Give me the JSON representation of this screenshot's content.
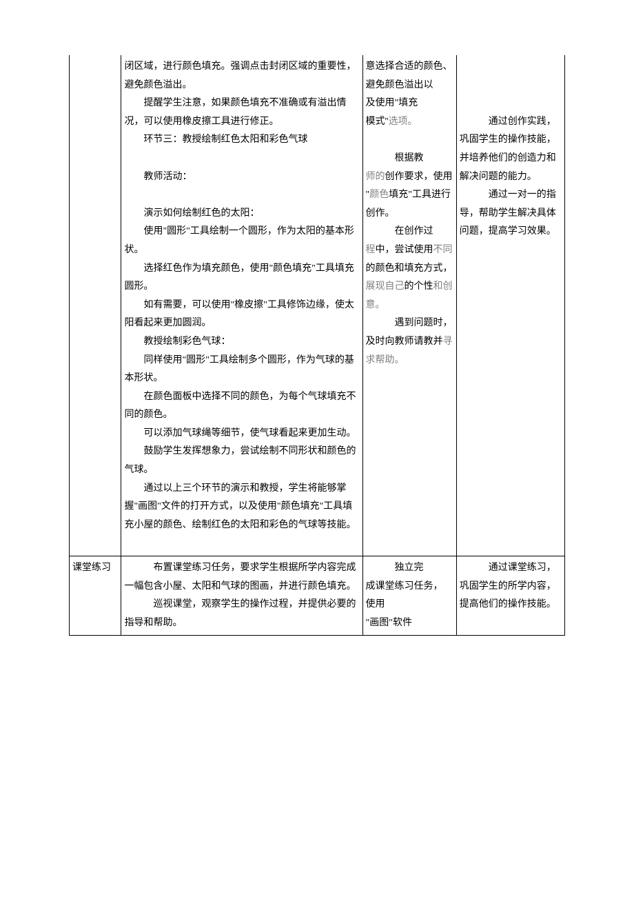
{
  "table": {
    "row1": {
      "col1": "",
      "col2_paragraphs": [
        "闭区域，进行颜色填充。强调点击封闭区域的重要性，避免颜色溢出。",
        "提醒学生注意，如果颜色填充不准确或有溢出情况，可以使用橡皮擦工具进行修正。",
        "环节三：教授绘制红色太阳和彩色气球",
        "",
        "教师活动：",
        "",
        "演示如何绘制红色的太阳：",
        "使用\"圆形\"工具绘制一个圆形，作为太阳的基本形状。",
        "选择红色作为填充颜色，使用\"颜色填充\"工具填充圆形。",
        "如有需要，可以使用\"橡皮擦\"工具修饰边缘，使太阳看起来更加圆润。",
        "教授绘制彩色气球：",
        "同样使用\"圆形\"工具绘制多个圆形，作为气球的基本形状。",
        "在颜色面板中选择不同的颜色，为每个气球填充不同的颜色。",
        "可以添加气球绳等细节，使气球看起来更加生动。",
        "鼓励学生发挥想象力，尝试绘制不同形状和颜色的气球。",
        "通过以上三个环节的演示和教授，学生将能够掌握\"画图\"文件的打开方式，以及使用\"颜色填充\"工具填充小屋的颜色、绘制红色的太阳和彩色的气球等技能。",
        ""
      ],
      "col3_segments": [
        {
          "text": "意选择合适的颜色、避免颜色溢出以",
          "indent": false
        },
        {
          "text": "及使用\"填充",
          "indent": false
        },
        {
          "text": "模式''",
          "indent": false,
          "grayAfter": "选项。"
        },
        {
          "text": "",
          "indent": false
        },
        {
          "text": "根据教",
          "indent": true,
          "pre": "",
          "grayPre": ""
        },
        {
          "text": "",
          "indent": false,
          "raw": true
        }
      ],
      "col4_segments": [
        {
          "text": "通过创作实践，巩固学生的操作技能，并培养他们的创造力和解决问题的能力。",
          "indent": true
        },
        {
          "text": "通过一对一的指导，帮助学生解决具体问题，提高学习效果。",
          "indent": true
        }
      ]
    },
    "row2": {
      "col1": "课堂练习",
      "col2_paragraphs": [
        "布置课堂练习任务，要求学生根据所学内容完成一幅包含小屋、太阳和气球的图画，并进行颜色填充。",
        "巡视课堂，观察学生的操作过程，并提供必要的指导和帮助。"
      ],
      "col3_paragraphs": [
        "独立完成课堂练习任务，使用",
        "\"画图\"软件"
      ],
      "col4_paragraphs": [
        "通过课堂练习，巩固学生的所学内容，提高他们的操作技能。"
      ]
    }
  },
  "strings": {
    "c3_a": "意选择合适的颜色、避免颜色溢出以",
    "c3_b": "及使用\"填充",
    "c3_c1": "模式''",
    "c3_c2": "选项。",
    "c3_d1": "根据教",
    "c3_d2": "师的",
    "c3_d3": "创作要求，使用",
    "c3_e1": "\"",
    "c3_e2": "颜色",
    "c3_e3": "填充\"工具进行创作。",
    "c3_f1": "在创作过",
    "c3_f2": "程中，尝试使用不同",
    "c3_f3": "的颜色和填充方式，",
    "c3_f4": "展现自己",
    "c3_f5": "的个性",
    "c3_f6": "和创意。",
    "c3_g1": "遇到问题时，及时向教师请教并",
    "c3_g2": "寻求帮助。",
    "r2c3_a": "独立完",
    "r2c3_b": "成课堂练习任务，",
    "r2c3_c": "使用",
    "r2c3_d": "\"画图\"软件"
  }
}
